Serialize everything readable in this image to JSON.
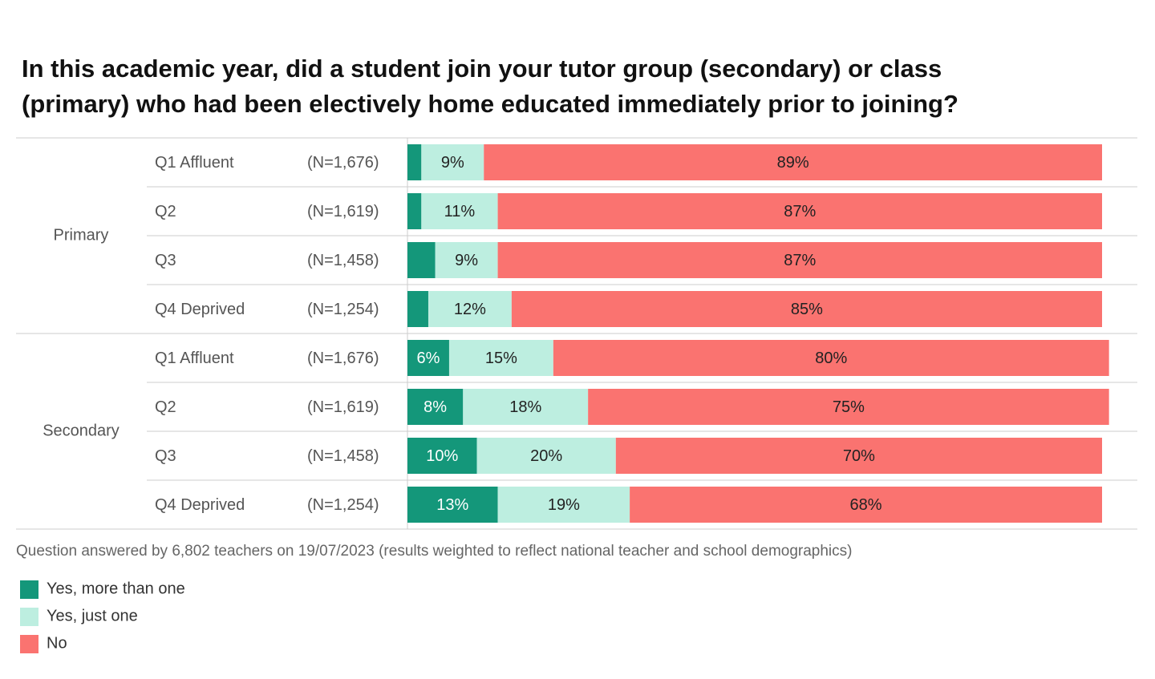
{
  "chart_data": {
    "type": "stacked-bar-horizontal",
    "title": "In this academic year, did a student join your tutor group (secondary) or class (primary) who had been electively home educated immediately prior to joining?",
    "note": "Question answered by 6,802 teachers on 19/07/2023 (results weighted to reflect national teacher and school demographics)",
    "category_groups": [
      "Primary",
      null,
      null,
      null,
      "Secondary",
      null,
      null,
      null
    ],
    "categories": [
      "Q1 Affluent",
      "Q2",
      "Q3",
      "Q4 Deprived",
      "Q1 Affluent",
      "Q2",
      "Q3",
      "Q4 Deprived"
    ],
    "n_labels": [
      "(N=1,676)",
      "(N=1,619)",
      "(N=1,458)",
      "(N=1,254)",
      "(N=1,676)",
      "(N=1,619)",
      "(N=1,458)",
      "(N=1,254)"
    ],
    "xlim": [
      0,
      100
    ],
    "series": [
      {
        "name": "Yes, more than one",
        "color": "#14977a",
        "label_color": "#ffffff",
        "values": [
          2,
          2,
          4,
          3,
          6,
          8,
          10,
          13
        ],
        "value_labels": [
          null,
          null,
          null,
          null,
          "6%",
          "8%",
          "10%",
          "13%"
        ]
      },
      {
        "name": "Yes, just one",
        "color": "#bdeee0",
        "label_color": "#222222",
        "values": [
          9,
          11,
          9,
          12,
          15,
          18,
          20,
          19
        ],
        "value_labels": [
          "9%",
          "11%",
          "9%",
          "12%",
          "15%",
          "18%",
          "20%",
          "19%"
        ]
      },
      {
        "name": "No",
        "color": "#fa7370",
        "label_color": "#222222",
        "values": [
          89,
          87,
          87,
          85,
          80,
          75,
          70,
          68
        ],
        "value_labels": [
          "89%",
          "87%",
          "87%",
          "85%",
          "80%",
          "75%",
          "70%",
          "68%"
        ]
      }
    ]
  }
}
